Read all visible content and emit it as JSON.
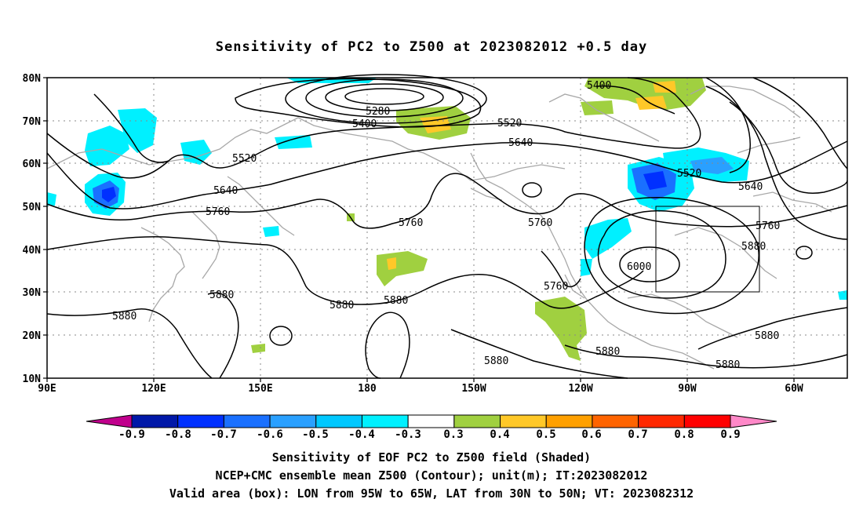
{
  "title": "Sensitivity of PC2 to Z500 at 2023082012 +0.5 day",
  "axes": {
    "lat_labels": [
      "80N",
      "70N",
      "60N",
      "50N",
      "40N",
      "30N",
      "20N",
      "10N"
    ],
    "lon_labels": [
      "90E",
      "120E",
      "150E",
      "180",
      "150W",
      "120W",
      "90W",
      "60W"
    ]
  },
  "contour_labels": [
    "5400",
    "5280",
    "5400",
    "5520",
    "5520",
    "5640",
    "5640",
    "5520",
    "5640",
    "5760",
    "5760",
    "5760",
    "5760",
    "5880",
    "5880",
    "5880",
    "5880",
    "5880",
    "5880",
    "5880",
    "5880",
    "6000",
    "5760",
    "5880"
  ],
  "colorbar": {
    "labels": [
      "-0.9",
      "-0.8",
      "-0.7",
      "-0.6",
      "-0.5",
      "-0.4",
      "-0.3",
      "0.3",
      "0.4",
      "0.5",
      "0.6",
      "0.7",
      "0.8",
      "0.9"
    ],
    "colors": [
      "#c0008c",
      "#0018a8",
      "#0030ff",
      "#1a70ff",
      "#2aa0ff",
      "#00c8ff",
      "#00f0ff",
      "#ffffff",
      "#a0d040",
      "#ffc828",
      "#ffa000",
      "#ff6400",
      "#ff2800",
      "#ff0000",
      "#ff88c8"
    ]
  },
  "captions": {
    "line1": "Sensitivity of EOF PC2 to Z500 field (Shaded)",
    "line2": "NCEP+CMC ensemble mean Z500 (Contour); unit(m); IT:2023082012",
    "line3": "Valid area (box): LON from 95W to 65W, LAT from 30N to 50N; VT: 2023082312"
  }
}
